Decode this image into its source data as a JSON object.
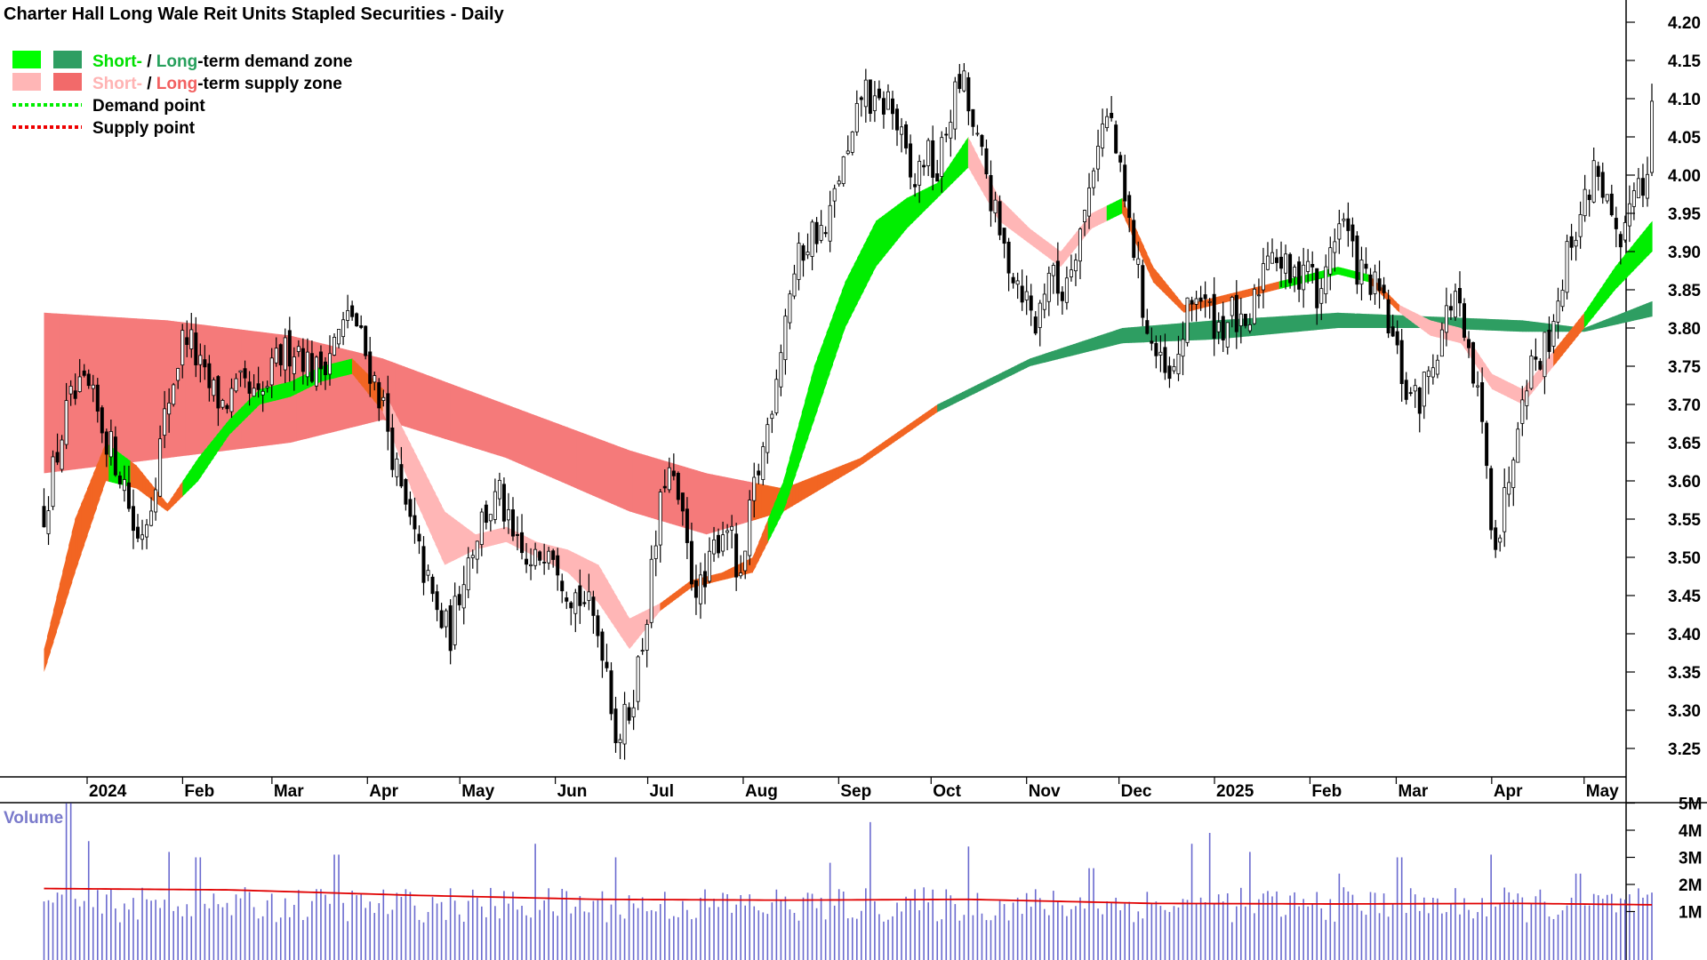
{
  "chart_data": {
    "type": "candlestick",
    "title": "Charter Hall Long Wale Reit Units Stapled Securities - Daily",
    "price_axis": {
      "ylim": [
        3.2,
        4.22
      ],
      "ticks": [
        "3.25",
        "3.30",
        "3.35",
        "3.40",
        "3.45",
        "3.50",
        "3.55",
        "3.60",
        "3.65",
        "3.70",
        "3.75",
        "3.80",
        "3.85",
        "3.90",
        "3.95",
        "4.00",
        "4.05",
        "4.10",
        "4.15",
        "4.20"
      ]
    },
    "time_axis": {
      "months": [
        {
          "label": "2024",
          "day": 14
        },
        {
          "label": "Feb",
          "day": 45
        },
        {
          "label": "Mar",
          "day": 74
        },
        {
          "label": "Apr",
          "day": 105
        },
        {
          "label": "May",
          "day": 135
        },
        {
          "label": "Jun",
          "day": 166
        },
        {
          "label": "Jul",
          "day": 196
        },
        {
          "label": "Aug",
          "day": 227
        },
        {
          "label": "Sep",
          "day": 258
        },
        {
          "label": "Oct",
          "day": 288
        },
        {
          "label": "Nov",
          "day": 319
        },
        {
          "label": "Dec",
          "day": 349
        },
        {
          "label": "2025",
          "day": 380
        },
        {
          "label": "Feb",
          "day": 411
        },
        {
          "label": "Mar",
          "day": 439
        },
        {
          "label": "Apr",
          "day": 470
        },
        {
          "label": "May",
          "day": 500
        }
      ],
      "day_range": [
        0,
        560
      ]
    },
    "legend": {
      "placement": "top-left",
      "entries": [
        {
          "parts": [
            {
              "text": "Short-",
              "color": "#00e000"
            },
            {
              "text": " / ",
              "color": "#000000"
            },
            {
              "text": "Long",
              "color": "#27a05c"
            },
            {
              "text": "-term demand zone",
              "color": "#000000"
            }
          ],
          "swatches": [
            "#00ff00",
            "#2e9e62"
          ]
        },
        {
          "parts": [
            {
              "text": "Short-",
              "color": "#ffb3b3"
            },
            {
              "text": " / ",
              "color": "#000000"
            },
            {
              "text": "Long",
              "color": "#f26060"
            },
            {
              "text": "-term supply zone",
              "color": "#000000"
            }
          ],
          "swatches": [
            "#ffb6b6",
            "#f26a6a"
          ]
        },
        {
          "parts": [
            {
              "text": "Demand point",
              "color": "#000000"
            }
          ],
          "line": "#00ee00"
        },
        {
          "parts": [
            {
              "text": "Supply point",
              "color": "#000000"
            }
          ],
          "line": "#ee0000"
        }
      ]
    },
    "price_anchors": [
      [
        0,
        3.56
      ],
      [
        8,
        3.7
      ],
      [
        14,
        3.72
      ],
      [
        20,
        3.66
      ],
      [
        26,
        3.6
      ],
      [
        30,
        3.52
      ],
      [
        34,
        3.56
      ],
      [
        40,
        3.7
      ],
      [
        46,
        3.8
      ],
      [
        52,
        3.73
      ],
      [
        58,
        3.7
      ],
      [
        64,
        3.72
      ],
      [
        70,
        3.7
      ],
      [
        76,
        3.76
      ],
      [
        82,
        3.78
      ],
      [
        88,
        3.74
      ],
      [
        94,
        3.78
      ],
      [
        100,
        3.82
      ],
      [
        104,
        3.77
      ],
      [
        110,
        3.7
      ],
      [
        116,
        3.58
      ],
      [
        122,
        3.5
      ],
      [
        128,
        3.42
      ],
      [
        132,
        3.4
      ],
      [
        136,
        3.48
      ],
      [
        142,
        3.55
      ],
      [
        148,
        3.58
      ],
      [
        152,
        3.52
      ],
      [
        158,
        3.48
      ],
      [
        164,
        3.53
      ],
      [
        170,
        3.46
      ],
      [
        176,
        3.44
      ],
      [
        182,
        3.38
      ],
      [
        186,
        3.26
      ],
      [
        190,
        3.3
      ],
      [
        194,
        3.38
      ],
      [
        198,
        3.5
      ],
      [
        202,
        3.62
      ],
      [
        206,
        3.57
      ],
      [
        210,
        3.48
      ],
      [
        214,
        3.45
      ],
      [
        218,
        3.52
      ],
      [
        222,
        3.55
      ],
      [
        226,
        3.45
      ],
      [
        230,
        3.58
      ],
      [
        234,
        3.65
      ],
      [
        238,
        3.75
      ],
      [
        242,
        3.85
      ],
      [
        246,
        3.9
      ],
      [
        250,
        3.93
      ],
      [
        254,
        3.92
      ],
      [
        258,
        4.0
      ],
      [
        262,
        4.03
      ],
      [
        266,
        4.12
      ],
      [
        270,
        4.08
      ],
      [
        274,
        4.1
      ],
      [
        278,
        4.05
      ],
      [
        282,
        3.98
      ],
      [
        286,
        4.03
      ],
      [
        290,
        4.0
      ],
      [
        294,
        4.08
      ],
      [
        298,
        4.13
      ],
      [
        302,
        4.05
      ],
      [
        306,
        4.0
      ],
      [
        310,
        3.92
      ],
      [
        314,
        3.88
      ],
      [
        318,
        3.85
      ],
      [
        322,
        3.8
      ],
      [
        326,
        3.88
      ],
      [
        330,
        3.84
      ],
      [
        334,
        3.9
      ],
      [
        338,
        3.95
      ],
      [
        342,
        4.05
      ],
      [
        346,
        4.08
      ],
      [
        350,
        3.98
      ],
      [
        354,
        3.9
      ],
      [
        358,
        3.8
      ],
      [
        362,
        3.75
      ],
      [
        366,
        3.72
      ],
      [
        370,
        3.8
      ],
      [
        374,
        3.85
      ],
      [
        378,
        3.82
      ],
      [
        382,
        3.8
      ],
      [
        386,
        3.82
      ],
      [
        390,
        3.78
      ],
      [
        394,
        3.85
      ],
      [
        398,
        3.92
      ],
      [
        402,
        3.88
      ],
      [
        406,
        3.86
      ],
      [
        410,
        3.9
      ],
      [
        414,
        3.82
      ],
      [
        418,
        3.92
      ],
      [
        422,
        3.94
      ],
      [
        426,
        3.88
      ],
      [
        430,
        3.86
      ],
      [
        434,
        3.84
      ],
      [
        438,
        3.78
      ],
      [
        442,
        3.72
      ],
      [
        446,
        3.7
      ],
      [
        450,
        3.75
      ],
      [
        454,
        3.8
      ],
      [
        458,
        3.85
      ],
      [
        462,
        3.76
      ],
      [
        466,
        3.7
      ],
      [
        470,
        3.55
      ],
      [
        472,
        3.52
      ],
      [
        476,
        3.62
      ],
      [
        480,
        3.73
      ],
      [
        484,
        3.76
      ],
      [
        488,
        3.78
      ],
      [
        492,
        3.85
      ],
      [
        496,
        3.92
      ],
      [
        500,
        3.96
      ],
      [
        504,
        4.02
      ],
      [
        508,
        3.95
      ],
      [
        512,
        3.88
      ],
      [
        516,
        4.0
      ],
      [
        520,
        3.98
      ],
      [
        522,
        4.12
      ]
    ],
    "bands": [
      {
        "name": "long-term zone",
        "upper": [
          [
            0,
            3.82
          ],
          [
            40,
            3.81
          ],
          [
            80,
            3.79
          ],
          [
            110,
            3.76
          ],
          [
            150,
            3.7
          ],
          [
            190,
            3.64
          ],
          [
            215,
            3.61
          ],
          [
            240,
            3.59
          ],
          [
            265,
            3.63
          ],
          [
            290,
            3.7
          ],
          [
            320,
            3.76
          ],
          [
            350,
            3.8
          ],
          [
            380,
            3.81
          ],
          [
            420,
            3.82
          ],
          [
            450,
            3.815
          ],
          [
            480,
            3.81
          ],
          [
            500,
            3.8
          ],
          [
            522,
            3.835
          ]
        ],
        "lower": [
          [
            0,
            3.61
          ],
          [
            40,
            3.63
          ],
          [
            80,
            3.65
          ],
          [
            110,
            3.68
          ],
          [
            150,
            3.63
          ],
          [
            190,
            3.56
          ],
          [
            215,
            3.53
          ],
          [
            240,
            3.56
          ],
          [
            265,
            3.62
          ],
          [
            290,
            3.69
          ],
          [
            320,
            3.75
          ],
          [
            350,
            3.78
          ],
          [
            380,
            3.785
          ],
          [
            420,
            3.8
          ],
          [
            450,
            3.8
          ],
          [
            480,
            3.795
          ],
          [
            500,
            3.795
          ],
          [
            522,
            3.815
          ]
        ]
      },
      {
        "name": "short-term zone",
        "upper": [
          [
            0,
            3.38
          ],
          [
            10,
            3.55
          ],
          [
            20,
            3.65
          ],
          [
            30,
            3.62
          ],
          [
            40,
            3.57
          ],
          [
            50,
            3.63
          ],
          [
            60,
            3.68
          ],
          [
            70,
            3.72
          ],
          [
            80,
            3.73
          ],
          [
            90,
            3.75
          ],
          [
            100,
            3.76
          ],
          [
            110,
            3.72
          ],
          [
            120,
            3.64
          ],
          [
            130,
            3.56
          ],
          [
            140,
            3.53
          ],
          [
            150,
            3.54
          ],
          [
            160,
            3.52
          ],
          [
            170,
            3.51
          ],
          [
            180,
            3.49
          ],
          [
            190,
            3.42
          ],
          [
            200,
            3.44
          ],
          [
            210,
            3.47
          ],
          [
            220,
            3.48
          ],
          [
            230,
            3.5
          ],
          [
            240,
            3.6
          ],
          [
            250,
            3.75
          ],
          [
            260,
            3.86
          ],
          [
            270,
            3.94
          ],
          [
            280,
            3.97
          ],
          [
            290,
            3.99
          ],
          [
            300,
            4.05
          ],
          [
            310,
            3.97
          ],
          [
            320,
            3.93
          ],
          [
            330,
            3.9
          ],
          [
            340,
            3.95
          ],
          [
            350,
            3.97
          ],
          [
            360,
            3.88
          ],
          [
            370,
            3.83
          ],
          [
            380,
            3.84
          ],
          [
            390,
            3.85
          ],
          [
            400,
            3.86
          ],
          [
            410,
            3.87
          ],
          [
            420,
            3.88
          ],
          [
            430,
            3.87
          ],
          [
            440,
            3.83
          ],
          [
            450,
            3.81
          ],
          [
            460,
            3.8
          ],
          [
            470,
            3.74
          ],
          [
            480,
            3.72
          ],
          [
            490,
            3.77
          ],
          [
            500,
            3.82
          ],
          [
            510,
            3.88
          ],
          [
            522,
            3.94
          ]
        ],
        "lower": [
          [
            0,
            3.35
          ],
          [
            10,
            3.48
          ],
          [
            20,
            3.6
          ],
          [
            30,
            3.59
          ],
          [
            40,
            3.56
          ],
          [
            50,
            3.6
          ],
          [
            60,
            3.66
          ],
          [
            70,
            3.7
          ],
          [
            80,
            3.71
          ],
          [
            90,
            3.73
          ],
          [
            100,
            3.74
          ],
          [
            110,
            3.69
          ],
          [
            120,
            3.58
          ],
          [
            130,
            3.49
          ],
          [
            140,
            3.51
          ],
          [
            150,
            3.52
          ],
          [
            160,
            3.5
          ],
          [
            170,
            3.48
          ],
          [
            180,
            3.44
          ],
          [
            190,
            3.38
          ],
          [
            200,
            3.43
          ],
          [
            210,
            3.46
          ],
          [
            220,
            3.47
          ],
          [
            230,
            3.48
          ],
          [
            240,
            3.56
          ],
          [
            250,
            3.68
          ],
          [
            260,
            3.8
          ],
          [
            270,
            3.88
          ],
          [
            280,
            3.93
          ],
          [
            290,
            3.97
          ],
          [
            300,
            4.01
          ],
          [
            310,
            3.94
          ],
          [
            320,
            3.91
          ],
          [
            330,
            3.88
          ],
          [
            340,
            3.93
          ],
          [
            350,
            3.95
          ],
          [
            360,
            3.86
          ],
          [
            370,
            3.82
          ],
          [
            380,
            3.83
          ],
          [
            390,
            3.84
          ],
          [
            400,
            3.85
          ],
          [
            410,
            3.86
          ],
          [
            420,
            3.87
          ],
          [
            430,
            3.86
          ],
          [
            440,
            3.82
          ],
          [
            450,
            3.79
          ],
          [
            460,
            3.78
          ],
          [
            470,
            3.72
          ],
          [
            480,
            3.7
          ],
          [
            490,
            3.75
          ],
          [
            500,
            3.8
          ],
          [
            510,
            3.85
          ],
          [
            522,
            3.9
          ]
        ]
      }
    ],
    "volume": {
      "title": "Volume",
      "ylim": [
        0,
        5.8
      ],
      "ticks": [
        "1M",
        "2M",
        "3M",
        "4M",
        "5M"
      ],
      "average_anchors": [
        [
          0,
          1.85
        ],
        [
          60,
          1.8
        ],
        [
          120,
          1.6
        ],
        [
          180,
          1.45
        ],
        [
          240,
          1.42
        ],
        [
          300,
          1.45
        ],
        [
          360,
          1.3
        ],
        [
          420,
          1.28
        ],
        [
          480,
          1.3
        ],
        [
          522,
          1.25
        ]
      ],
      "spikes": [
        [
          8,
          5.0
        ],
        [
          15,
          3.6
        ],
        [
          40,
          3.2
        ],
        [
          50,
          3.0
        ],
        [
          95,
          3.1
        ],
        [
          160,
          3.5
        ],
        [
          186,
          3.0
        ],
        [
          255,
          2.8
        ],
        [
          268,
          4.3
        ],
        [
          300,
          3.4
        ],
        [
          340,
          2.6
        ],
        [
          372,
          3.5
        ],
        [
          378,
          3.9
        ],
        [
          392,
          3.2
        ],
        [
          420,
          2.4
        ],
        [
          440,
          3.0
        ],
        [
          470,
          3.1
        ],
        [
          498,
          2.4
        ],
        [
          522,
          1.7
        ]
      ]
    }
  }
}
